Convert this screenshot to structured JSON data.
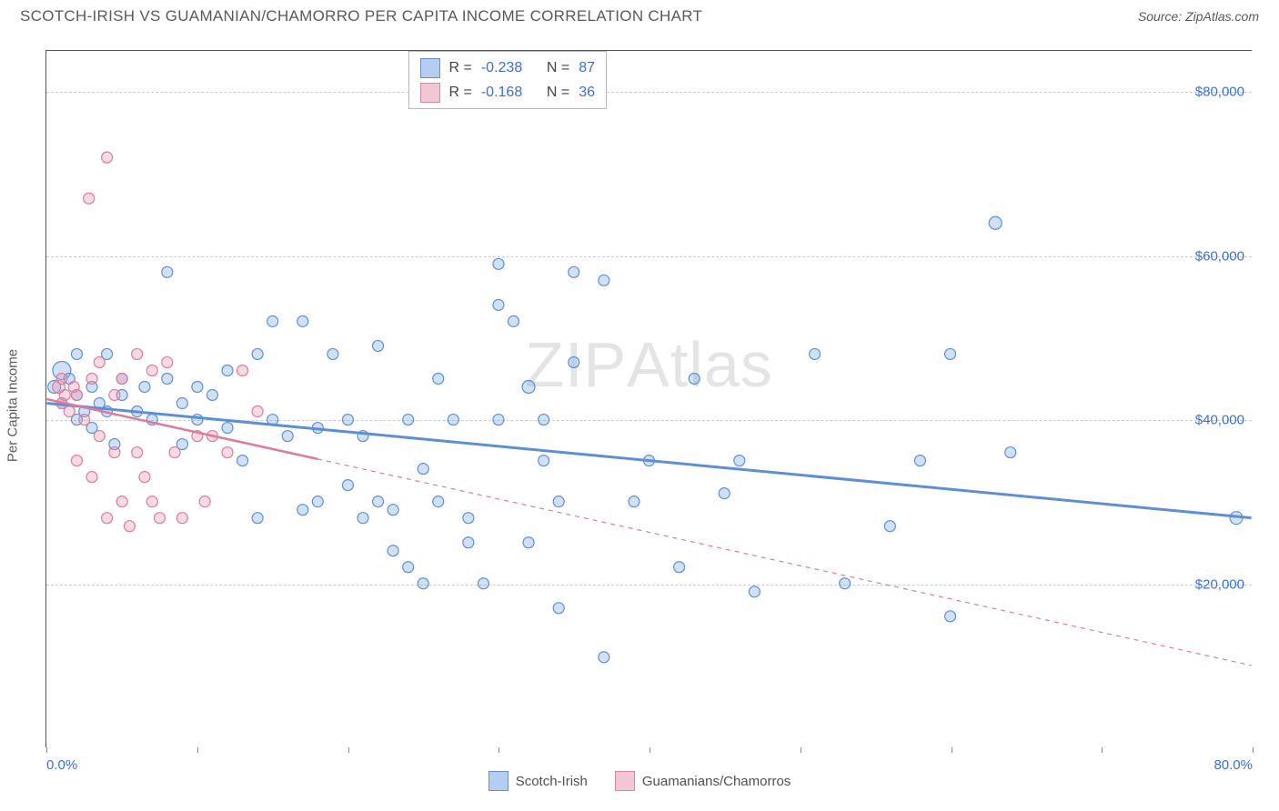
{
  "header": {
    "title": "SCOTCH-IRISH VS GUAMANIAN/CHAMORRO PER CAPITA INCOME CORRELATION CHART",
    "source_prefix": "Source: ",
    "source": "ZipAtlas.com"
  },
  "watermark": {
    "bold": "ZIP",
    "thin": "Atlas"
  },
  "axes": {
    "y_label": "Per Capita Income",
    "x_min": 0,
    "x_max": 80,
    "y_min": 0,
    "y_max": 85000,
    "x_tick_positions": [
      0,
      10,
      20,
      30,
      40,
      50,
      60,
      70,
      80
    ],
    "x_tick_labels": {
      "start": "0.0%",
      "end": "80.0%"
    },
    "y_gridlines": [
      20000,
      40000,
      60000,
      80000
    ],
    "y_tick_labels": [
      "$20,000",
      "$40,000",
      "$60,000",
      "$80,000"
    ],
    "grid_color": "#cccccc",
    "axis_label_color": "#3a6fd8"
  },
  "series": [
    {
      "key": "scotch_irish",
      "label": "Scotch-Irish",
      "color_fill": "rgba(120,165,225,0.35)",
      "color_stroke": "#5e8fd6",
      "swatch_fill": "#b6cdef",
      "swatch_border": "#6a8fce",
      "R": "-0.238",
      "N": "87",
      "trend": {
        "x1": 0,
        "y1": 42000,
        "x2": 80,
        "y2": 28000,
        "solid_until": 80,
        "stroke_width": 3
      },
      "points": [
        [
          0.5,
          44000,
          14
        ],
        [
          1,
          46000,
          20
        ],
        [
          1,
          42000,
          12
        ],
        [
          1.5,
          45000,
          12
        ],
        [
          2,
          40000,
          12
        ],
        [
          2,
          43000,
          12
        ],
        [
          2,
          48000,
          12
        ],
        [
          2.5,
          41000,
          12
        ],
        [
          3,
          44000,
          12
        ],
        [
          3,
          39000,
          12
        ],
        [
          3.5,
          42000,
          12
        ],
        [
          4,
          41000,
          12
        ],
        [
          4,
          48000,
          12
        ],
        [
          4.5,
          37000,
          12
        ],
        [
          5,
          45000,
          12
        ],
        [
          5,
          43000,
          12
        ],
        [
          6,
          41000,
          12
        ],
        [
          6.5,
          44000,
          12
        ],
        [
          7,
          40000,
          12
        ],
        [
          8,
          45000,
          12
        ],
        [
          8,
          58000,
          12
        ],
        [
          9,
          42000,
          12
        ],
        [
          9,
          37000,
          12
        ],
        [
          10,
          44000,
          12
        ],
        [
          10,
          40000,
          12
        ],
        [
          11,
          43000,
          12
        ],
        [
          12,
          46000,
          12
        ],
        [
          12,
          39000,
          12
        ],
        [
          13,
          35000,
          12
        ],
        [
          14,
          48000,
          12
        ],
        [
          14,
          28000,
          12
        ],
        [
          15,
          52000,
          12
        ],
        [
          15,
          40000,
          12
        ],
        [
          16,
          38000,
          12
        ],
        [
          17,
          52000,
          12
        ],
        [
          17,
          29000,
          12
        ],
        [
          18,
          39000,
          12
        ],
        [
          18,
          30000,
          12
        ],
        [
          19,
          48000,
          12
        ],
        [
          20,
          40000,
          12
        ],
        [
          20,
          32000,
          12
        ],
        [
          21,
          28000,
          12
        ],
        [
          21,
          38000,
          12
        ],
        [
          22,
          30000,
          12
        ],
        [
          22,
          49000,
          12
        ],
        [
          23,
          29000,
          12
        ],
        [
          23,
          24000,
          12
        ],
        [
          24,
          22000,
          12
        ],
        [
          24,
          40000,
          12
        ],
        [
          25,
          34000,
          12
        ],
        [
          25,
          20000,
          12
        ],
        [
          26,
          45000,
          12
        ],
        [
          26,
          30000,
          12
        ],
        [
          27,
          40000,
          12
        ],
        [
          28,
          28000,
          12
        ],
        [
          28,
          25000,
          12
        ],
        [
          29,
          20000,
          12
        ],
        [
          30,
          40000,
          12
        ],
        [
          30,
          59000,
          12
        ],
        [
          30,
          54000,
          12
        ],
        [
          31,
          52000,
          12
        ],
        [
          32,
          25000,
          12
        ],
        [
          32,
          44000,
          14
        ],
        [
          33,
          40000,
          12
        ],
        [
          33,
          35000,
          12
        ],
        [
          34,
          30000,
          12
        ],
        [
          34,
          17000,
          12
        ],
        [
          35,
          58000,
          12
        ],
        [
          35,
          47000,
          12
        ],
        [
          37,
          57000,
          12
        ],
        [
          37,
          11000,
          12
        ],
        [
          39,
          30000,
          12
        ],
        [
          40,
          35000,
          12
        ],
        [
          42,
          22000,
          12
        ],
        [
          43,
          45000,
          12
        ],
        [
          45,
          31000,
          12
        ],
        [
          46,
          35000,
          12
        ],
        [
          47,
          19000,
          12
        ],
        [
          51,
          48000,
          12
        ],
        [
          53,
          20000,
          12
        ],
        [
          56,
          27000,
          12
        ],
        [
          58,
          35000,
          12
        ],
        [
          60,
          48000,
          12
        ],
        [
          60,
          16000,
          12
        ],
        [
          63,
          64000,
          14
        ],
        [
          64,
          36000,
          12
        ],
        [
          79,
          28000,
          14
        ]
      ]
    },
    {
      "key": "guamanian",
      "label": "Guamanians/Chamorros",
      "color_fill": "rgba(235,150,175,0.35)",
      "color_stroke": "#dd7b9a",
      "swatch_fill": "#f3c6d4",
      "swatch_border": "#d986a2",
      "R": "-0.168",
      "N": "36",
      "trend": {
        "x1": 0,
        "y1": 42500,
        "x2": 80,
        "y2": 10000,
        "solid_until": 18,
        "stroke_width": 2.5
      },
      "points": [
        [
          0.8,
          44000,
          14
        ],
        [
          1,
          42000,
          12
        ],
        [
          1,
          45000,
          12
        ],
        [
          1.2,
          43000,
          12
        ],
        [
          1.5,
          41000,
          12
        ],
        [
          1.8,
          44000,
          12
        ],
        [
          2,
          35000,
          12
        ],
        [
          2,
          43000,
          12
        ],
        [
          2.5,
          40000,
          12
        ],
        [
          2.8,
          67000,
          12
        ],
        [
          3,
          45000,
          12
        ],
        [
          3,
          33000,
          12
        ],
        [
          3.5,
          47000,
          12
        ],
        [
          3.5,
          38000,
          12
        ],
        [
          4,
          28000,
          12
        ],
        [
          4,
          72000,
          12
        ],
        [
          4.5,
          36000,
          12
        ],
        [
          4.5,
          43000,
          12
        ],
        [
          5,
          30000,
          12
        ],
        [
          5,
          45000,
          12
        ],
        [
          5.5,
          27000,
          12
        ],
        [
          6,
          36000,
          12
        ],
        [
          6,
          48000,
          12
        ],
        [
          6.5,
          33000,
          12
        ],
        [
          7,
          46000,
          12
        ],
        [
          7,
          30000,
          12
        ],
        [
          7.5,
          28000,
          12
        ],
        [
          8,
          47000,
          12
        ],
        [
          8.5,
          36000,
          12
        ],
        [
          9,
          28000,
          12
        ],
        [
          10,
          38000,
          12
        ],
        [
          10.5,
          30000,
          12
        ],
        [
          11,
          38000,
          12
        ],
        [
          12,
          36000,
          12
        ],
        [
          13,
          46000,
          12
        ],
        [
          14,
          41000,
          12
        ]
      ]
    }
  ],
  "stats_box": {
    "R_label": "R =",
    "N_label": "N ="
  },
  "legend": {
    "items": [
      "scotch_irish",
      "guamanian"
    ]
  }
}
